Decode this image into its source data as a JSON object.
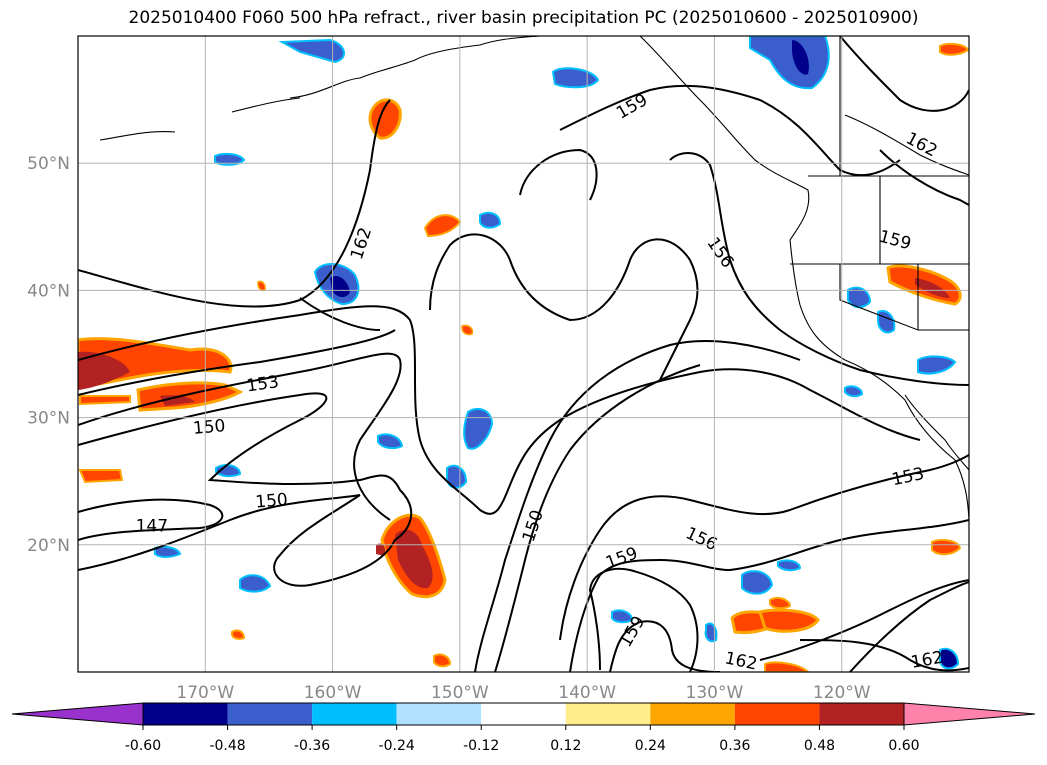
{
  "title": "2025010400 F060 500 hPa refract., river basin precipitation PC (2025010600 - 2025010900)",
  "map": {
    "lon_range": [
      180,
      -110
    ],
    "lat_range": [
      10,
      60
    ],
    "lat_ticks": [
      {
        "label": "20°N",
        "lat": 20
      },
      {
        "label": "30°N",
        "lat": 30
      },
      {
        "label": "40°N",
        "lat": 40
      },
      {
        "label": "50°N",
        "lat": 50
      }
    ],
    "lon_ticks": [
      {
        "label": "170°W",
        "lon": -170
      },
      {
        "label": "160°W",
        "lon": -160
      },
      {
        "label": "150°W",
        "lon": -150
      },
      {
        "label": "140°W",
        "lon": -140
      },
      {
        "label": "130°W",
        "lon": -130
      },
      {
        "label": "120°W",
        "lon": -120
      }
    ],
    "contour_labels": [
      {
        "text": "162",
        "lon": -157.8,
        "lat": 43.7,
        "angle": -72
      },
      {
        "text": "159",
        "lon": -136.5,
        "lat": 54.5,
        "angle": -30
      },
      {
        "text": "162",
        "lon": -113.7,
        "lat": 51.5,
        "angle": 28
      },
      {
        "text": "156",
        "lon": -129.5,
        "lat": 43,
        "angle": 55
      },
      {
        "text": "159",
        "lon": -115.8,
        "lat": 44,
        "angle": 15
      },
      {
        "text": "153",
        "lon": -165.5,
        "lat": 32.7,
        "angle": -8
      },
      {
        "text": "150",
        "lon": -169.7,
        "lat": 29.3,
        "angle": -5
      },
      {
        "text": "150",
        "lon": -164.8,
        "lat": 23.5,
        "angle": -5
      },
      {
        "text": "147",
        "lon": -174.2,
        "lat": 21.5,
        "angle": 0
      },
      {
        "text": "150",
        "lon": -144.3,
        "lat": 21.5,
        "angle": -72
      },
      {
        "text": "156",
        "lon": -131,
        "lat": 20.5,
        "angle": 25
      },
      {
        "text": "159",
        "lon": -137.3,
        "lat": 19,
        "angle": -20
      },
      {
        "text": "159",
        "lon": -136.5,
        "lat": 13.2,
        "angle": -60
      },
      {
        "text": "153",
        "lon": -114.8,
        "lat": 25.4,
        "angle": -12
      },
      {
        "text": "162",
        "lon": -127.9,
        "lat": 10.9,
        "angle": 12
      },
      {
        "text": "162",
        "lon": -113.3,
        "lat": 11,
        "angle": -10
      }
    ],
    "colors": {
      "frame": "#000000",
      "grid": "#b3b3b3",
      "contour": "#000000",
      "coast": "#000000"
    }
  },
  "colorbar": {
    "levels": [
      "-0.60",
      "-0.48",
      "-0.36",
      "-0.24",
      "-0.12",
      "0.12",
      "0.24",
      "0.36",
      "0.48",
      "0.60"
    ],
    "colors": [
      "#9932cc",
      "#00008b",
      "#3a5fcd",
      "#00bfff",
      "#b0e2ff",
      "#ffffff",
      "#ffec8b",
      "#ffa500",
      "#ff4500",
      "#b22222",
      "#ff82ab"
    ]
  }
}
